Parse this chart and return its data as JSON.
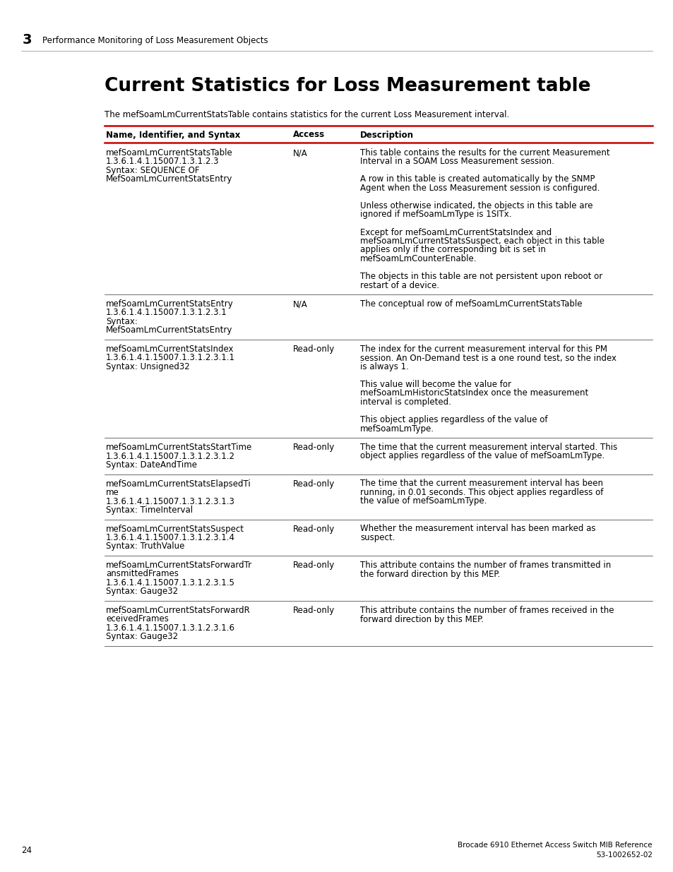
{
  "page_number": "24",
  "chapter_number": "3",
  "chapter_title": "Performance Monitoring of Loss Measurement Objects",
  "section_title": "Current Statistics for Loss Measurement table",
  "intro_text": "The mefSoamLmCurrentStatsTable contains statistics for the current Loss Measurement interval.",
  "footer_right_line1": "Brocade 6910 Ethernet Access Switch MIB Reference",
  "footer_right_line2": "53-1002652-02",
  "col_headers": [
    "Name, Identifier, and Syntax",
    "Access",
    "Description"
  ],
  "header_line_color": "#cc0000",
  "table_line_color": "#000000",
  "rows": [
    {
      "name_lines": [
        "mefSoamLmCurrentStatsTable",
        "1.3.6.1.4.1.15007.1.3.1.2.3",
        "Syntax: SEQUENCE OF",
        "MefSoamLmCurrentStatsEntry"
      ],
      "access": "N/A",
      "desc_lines": [
        "This table contains the results for the current Measurement",
        "Interval in a SOAM Loss Measurement session.",
        "",
        "A row in this table is created automatically by the SNMP",
        "Agent when the Loss Measurement session is configured.",
        "",
        "Unless otherwise indicated, the objects in this table are",
        "ignored if mefSoamLmType is 1SITx.",
        "",
        "Except for mefSoamLmCurrentStatsIndex and",
        "mefSoamLmCurrentStatsSuspect, each object in this table",
        "applies only if the corresponding bit is set in",
        "mefSoamLmCounterEnable.",
        "",
        "The objects in this table are not persistent upon reboot or",
        "restart of a device."
      ]
    },
    {
      "name_lines": [
        "mefSoamLmCurrentStatsEntry",
        "1.3.6.1.4.1.15007.1.3.1.2.3.1",
        "Syntax:",
        "MefSoamLmCurrentStatsEntry"
      ],
      "access": "N/A",
      "desc_lines": [
        "The conceptual row of mefSoamLmCurrentStatsTable"
      ]
    },
    {
      "name_lines": [
        "mefSoamLmCurrentStatsIndex",
        "1.3.6.1.4.1.15007.1.3.1.2.3.1.1",
        "Syntax: Unsigned32"
      ],
      "access": "Read-only",
      "desc_lines": [
        "The index for the current measurement interval for this PM",
        "session. An On-Demand test is a one round test, so the index",
        "is always 1.",
        "",
        "This value will become the value for",
        "mefSoamLmHistoricStatsIndex once the measurement",
        "interval is completed.",
        "",
        "This object applies regardless of the value of",
        "mefSoamLmType."
      ]
    },
    {
      "name_lines": [
        "mefSoamLmCurrentStatsStartTime",
        "1.3.6.1.4.1.15007.1.3.1.2.3.1.2",
        "Syntax: DateAndTime"
      ],
      "access": "Read-only",
      "desc_lines": [
        "The time that the current measurement interval started. This",
        "object applies regardless of the value of mefSoamLmType."
      ]
    },
    {
      "name_lines": [
        "mefSoamLmCurrentStatsElapsedTi",
        "me",
        "1.3.6.1.4.1.15007.1.3.1.2.3.1.3",
        "Syntax: TimeInterval"
      ],
      "access": "Read-only",
      "desc_lines": [
        "The time that the current measurement interval has been",
        "running, in 0.01 seconds. This object applies regardless of",
        "the value of mefSoamLmType."
      ]
    },
    {
      "name_lines": [
        "mefSoamLmCurrentStatsSuspect",
        "1.3.6.1.4.1.15007.1.3.1.2.3.1.4",
        "Syntax: TruthValue"
      ],
      "access": "Read-only",
      "desc_lines": [
        "Whether the measurement interval has been marked as",
        "suspect."
      ]
    },
    {
      "name_lines": [
        "mefSoamLmCurrentStatsForwardTr",
        "ansmittedFrames",
        "1.3.6.1.4.1.15007.1.3.1.2.3.1.5",
        "Syntax: Gauge32"
      ],
      "access": "Read-only",
      "desc_lines": [
        "This attribute contains the number of frames transmitted in",
        "the forward direction by this MEP."
      ]
    },
    {
      "name_lines": [
        "mefSoamLmCurrentStatsForwardR",
        "eceivedFrames",
        "1.3.6.1.4.1.15007.1.3.1.2.3.1.6",
        "Syntax: Gauge32"
      ],
      "access": "Read-only",
      "desc_lines": [
        "This attribute contains the number of frames received in the",
        "forward direction by this MEP."
      ]
    }
  ]
}
